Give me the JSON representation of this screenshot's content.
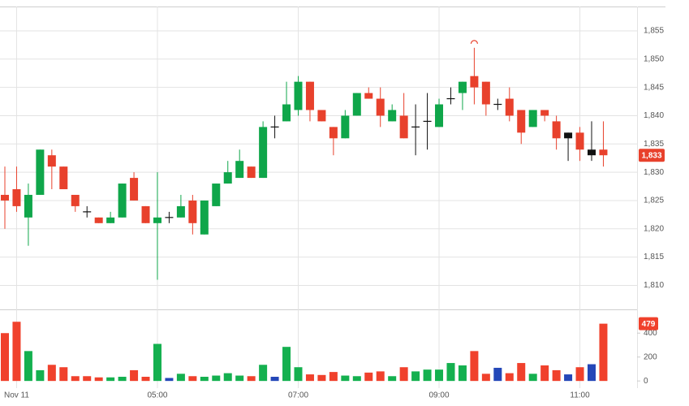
{
  "chart_data": [
    {
      "type": "candlestick",
      "open": [
        1826,
        1827,
        1822,
        1826,
        1833,
        1831,
        1826,
        1823,
        1822,
        1821,
        1822,
        1829,
        1824,
        1821,
        1822,
        1822,
        1825,
        1819,
        1824,
        1828,
        1829,
        1831,
        1829,
        1838,
        1839,
        1841,
        1846,
        1841,
        1838,
        1836,
        1840,
        1844,
        1843,
        1839,
        1840,
        1838,
        1839,
        1838,
        1843,
        1844,
        1847,
        1846,
        1842,
        1843,
        1841,
        1838,
        1841,
        1839,
        1837,
        1837,
        1834,
        1834
      ],
      "high": [
        1831,
        1831,
        1828,
        1834,
        1834,
        1831,
        1826,
        1824,
        1822,
        1823,
        1828,
        1830,
        1824,
        1830,
        1823,
        1826,
        1826,
        1825,
        1828,
        1832,
        1834,
        1831,
        1839,
        1840,
        1846,
        1847,
        1846,
        1841,
        1838,
        1841,
        1844,
        1845,
        1845,
        1842,
        1844,
        1842,
        1844,
        1843,
        1845,
        1846,
        1852,
        1846,
        1843,
        1845,
        1841,
        1841,
        1841,
        1840,
        1837,
        1838,
        1839,
        1839
      ],
      "low": [
        1820,
        1823,
        1817,
        1826,
        1827,
        1827,
        1823,
        1822,
        1821,
        1821,
        1822,
        1825,
        1821,
        1811,
        1821,
        1822,
        1819,
        1819,
        1824,
        1828,
        1829,
        1829,
        1829,
        1836,
        1839,
        1840,
        1839,
        1839,
        1833,
        1836,
        1840,
        1843,
        1838,
        1839,
        1836,
        1833,
        1834,
        1838,
        1842,
        1841,
        1842,
        1840,
        1841,
        1839,
        1835,
        1838,
        1839,
        1834,
        1832,
        1832,
        1832,
        1831
      ],
      "close": [
        1825,
        1824,
        1826,
        1834,
        1831,
        1827,
        1824,
        1823,
        1821,
        1822,
        1828,
        1825,
        1821,
        1822,
        1822,
        1824,
        1821,
        1825,
        1828,
        1830,
        1832,
        1829,
        1838,
        1838,
        1842,
        1846,
        1841,
        1839,
        1836,
        1840,
        1844,
        1843,
        1840,
        1841,
        1836,
        1838,
        1839,
        1842,
        1843,
        1846,
        1845,
        1842,
        1842,
        1840,
        1837,
        1841,
        1840,
        1836,
        1836,
        1834,
        1833,
        1833
      ],
      "colors": [
        "#e8412c",
        "#e8412c",
        "#0fa64a",
        "#0fa64a",
        "#e8412c",
        "#e8412c",
        "#e8412c",
        "#111111",
        "#e8412c",
        "#0fa64a",
        "#0fa64a",
        "#e8412c",
        "#e8412c",
        "#0fa64a",
        "#111111",
        "#0fa64a",
        "#e8412c",
        "#0fa64a",
        "#0fa64a",
        "#0fa64a",
        "#0fa64a",
        "#e8412c",
        "#0fa64a",
        "#111111",
        "#0fa64a",
        "#0fa64a",
        "#e8412c",
        "#e8412c",
        "#e8412c",
        "#0fa64a",
        "#0fa64a",
        "#e8412c",
        "#e8412c",
        "#0fa64a",
        "#e8412c",
        "#111111",
        "#111111",
        "#0fa64a",
        "#111111",
        "#0fa64a",
        "#e8412c",
        "#e8412c",
        "#111111",
        "#e8412c",
        "#e8412c",
        "#0fa64a",
        "#e8412c",
        "#e8412c",
        "#111111",
        "#e8412c",
        "#111111",
        "#e8412c"
      ],
      "ylim": [
        1805.9,
        1859.3
      ],
      "yticks": [
        {
          "value": 1810,
          "label": "1,810"
        },
        {
          "value": 1815,
          "label": "1,815"
        },
        {
          "value": 1820,
          "label": "1,820"
        },
        {
          "value": 1825,
          "label": "1,825"
        },
        {
          "value": 1830,
          "label": "1,830"
        },
        {
          "value": 1835,
          "label": "1,835"
        },
        {
          "value": 1840,
          "label": "1,840"
        },
        {
          "value": 1845,
          "label": "1,845"
        },
        {
          "value": 1850,
          "label": "1,850"
        },
        {
          "value": 1855,
          "label": "1,855"
        }
      ],
      "grid": true,
      "last_close_label": "1,833",
      "badge_color": "#e8412c"
    },
    {
      "type": "bar",
      "categories": [
        null,
        "Nov 11",
        null,
        null,
        null,
        null,
        null,
        null,
        null,
        null,
        null,
        null,
        null,
        "05:00",
        null,
        null,
        null,
        null,
        null,
        null,
        null,
        null,
        null,
        null,
        null,
        "07:00",
        null,
        null,
        null,
        null,
        null,
        null,
        null,
        null,
        null,
        null,
        null,
        "09:00",
        null,
        null,
        null,
        null,
        null,
        null,
        null,
        null,
        null,
        null,
        null,
        "11:00",
        null,
        null
      ],
      "values": [
        400,
        495,
        250,
        90,
        135,
        115,
        40,
        40,
        30,
        30,
        35,
        90,
        35,
        310,
        25,
        60,
        40,
        35,
        45,
        65,
        45,
        40,
        135,
        35,
        285,
        115,
        55,
        50,
        75,
        45,
        40,
        70,
        80,
        40,
        115,
        80,
        95,
        95,
        150,
        130,
        250,
        60,
        110,
        65,
        150,
        60,
        130,
        90,
        55,
        115,
        140,
        479
      ],
      "colors": [
        "#f0412c",
        "#f0412c",
        "#14b04f",
        "#14b04f",
        "#f0412c",
        "#f0412c",
        "#f0412c",
        "#f0412c",
        "#f0412c",
        "#14b04f",
        "#14b04f",
        "#f0412c",
        "#f0412c",
        "#14b04f",
        "#2447b8",
        "#14b04f",
        "#f0412c",
        "#14b04f",
        "#14b04f",
        "#14b04f",
        "#14b04f",
        "#f0412c",
        "#14b04f",
        "#2447b8",
        "#14b04f",
        "#14b04f",
        "#f0412c",
        "#f0412c",
        "#f0412c",
        "#14b04f",
        "#14b04f",
        "#f0412c",
        "#f0412c",
        "#14b04f",
        "#f0412c",
        "#14b04f",
        "#14b04f",
        "#14b04f",
        "#14b04f",
        "#14b04f",
        "#f0412c",
        "#f0412c",
        "#2447b8",
        "#f0412c",
        "#f0412c",
        "#14b04f",
        "#f0412c",
        "#f0412c",
        "#2447b8",
        "#f0412c",
        "#2447b8",
        "#f0412c"
      ],
      "ylim": [
        -60,
        585
      ],
      "yticks": [
        0,
        200,
        400
      ],
      "badge_color": "#f0412c"
    }
  ]
}
